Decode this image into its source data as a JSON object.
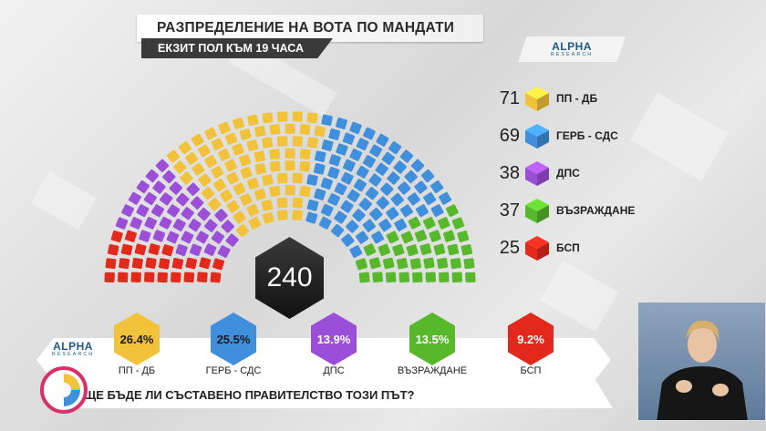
{
  "header": {
    "title": "РАЗПРЕДЕЛЕНИЕ НА ВОТА ПО МАНДАТИ",
    "subtitle": "ЕКЗИТ ПОЛ КЪМ 19 ЧАСА"
  },
  "logo": {
    "main": "ALPHA",
    "sub": "RESEARCH"
  },
  "chart_data": [
    {
      "type": "parliament",
      "total": 240,
      "total_label": "240",
      "categories": [
        "ПП - ДБ",
        "ГЕРБ - СДС",
        "ДПС",
        "ВЪЗРАЖДАНЕ",
        "БСП"
      ],
      "values": [
        71,
        69,
        38,
        37,
        25
      ],
      "value_labels": [
        "71",
        "69",
        "38",
        "37",
        "25"
      ],
      "colors": [
        "#f2c23a",
        "#3f8fdc",
        "#9b4fd8",
        "#56b82a",
        "#e2291c"
      ],
      "arrangement_order": [
        "БСП",
        "ДПС",
        "ПП - ДБ",
        "ГЕРБ - СДС",
        "ВЪЗРАЖДАНЕ"
      ]
    },
    {
      "type": "bar",
      "categories": [
        "ПП - ДБ",
        "ГЕРБ - СДС",
        "ДПС",
        "ВЪЗРАЖДАНЕ",
        "БСП"
      ],
      "values": [
        26.4,
        25.5,
        13.9,
        13.5,
        9.2
      ],
      "value_labels": [
        "26.4%",
        "25.5%",
        "13.9%",
        "13.5%",
        "9.2%"
      ],
      "colors": [
        "#f2c23a",
        "#3f8fdc",
        "#9b4fd8",
        "#56b82a",
        "#e2291c"
      ],
      "text_colors": [
        "#1a1a1a",
        "#1a1a1a",
        "#ffffff",
        "#ffffff",
        "#ffffff"
      ]
    }
  ],
  "ticker": {
    "question": "ЩЕ БЪДЕ ЛИ СЪСТАВЕНО ПРАВИТЕЛСТВО ТОЗИ ПЪТ?"
  },
  "sign_language": {
    "icon": "sign-language-interpreter-icon"
  }
}
